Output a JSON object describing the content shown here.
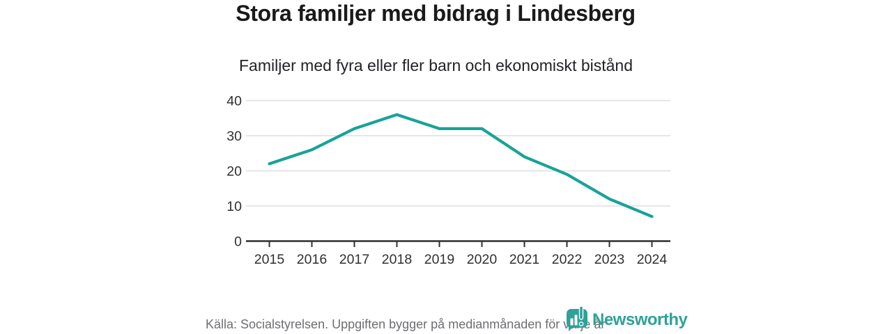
{
  "header": {
    "title": "Stora familjer med bidrag i Lindesberg",
    "subtitle": "Familjer med fyra eller fler barn och ekonomiskt bistånd"
  },
  "chart_data": {
    "type": "line",
    "title": "Stora familjer med bidrag i Lindesberg",
    "subtitle": "Familjer med fyra eller fler barn och ekonomiskt bistånd",
    "categories": [
      "2015",
      "2016",
      "2017",
      "2018",
      "2019",
      "2020",
      "2021",
      "2022",
      "2023",
      "2024"
    ],
    "values": [
      22,
      26,
      32,
      36,
      32,
      32,
      24,
      19,
      12,
      7
    ],
    "xlabel": "",
    "ylabel": "",
    "ylim": [
      0,
      40
    ],
    "yticks": [
      0,
      10,
      20,
      30,
      40
    ],
    "grid": "horizontal-only",
    "legend": "none",
    "line_color": "#17a398",
    "grid_color": "#dedede",
    "axis_color": "#2f2f2f",
    "tick_label_color": "#303030"
  },
  "footer": {
    "source": "Källa: Socialstyrelsen. Uppgiften bygger på medianmånaden för varje år",
    "brand": "Newsworthy",
    "brand_color": "#2fa198",
    "logo_icon": "newsworthy-speech-bubble-bar-chart-icon"
  }
}
